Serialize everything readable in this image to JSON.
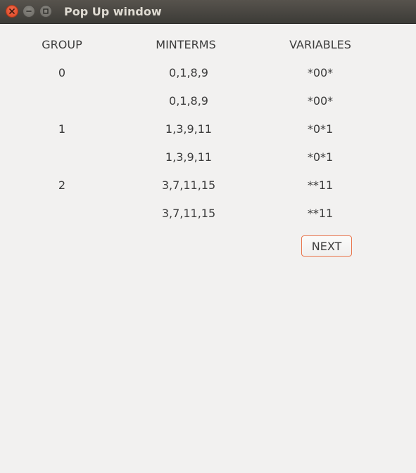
{
  "window": {
    "title": "Pop Up window"
  },
  "table": {
    "headers": {
      "group": "GROUP",
      "minterms": "MINTERMS",
      "variables": "VARIABLES"
    },
    "rows": [
      {
        "group": "0",
        "minterms": "0,1,8,9",
        "variables": "*00*"
      },
      {
        "group": "",
        "minterms": "0,1,8,9",
        "variables": "*00*"
      },
      {
        "group": "1",
        "minterms": "1,3,9,11",
        "variables": "*0*1"
      },
      {
        "group": "",
        "minterms": "1,3,9,11",
        "variables": "*0*1"
      },
      {
        "group": "2",
        "minterms": "3,7,11,15",
        "variables": "**11"
      },
      {
        "group": "",
        "minterms": "3,7,11,15",
        "variables": "**11"
      }
    ]
  },
  "actions": {
    "next_label": "NEXT"
  },
  "colors": {
    "close_button": "#e2532d",
    "button_border": "#e9764d",
    "background": "#f2f1f0",
    "titlebar": "#3c3b37"
  },
  "icons": [
    "close-icon",
    "minimize-icon",
    "maximize-icon"
  ]
}
